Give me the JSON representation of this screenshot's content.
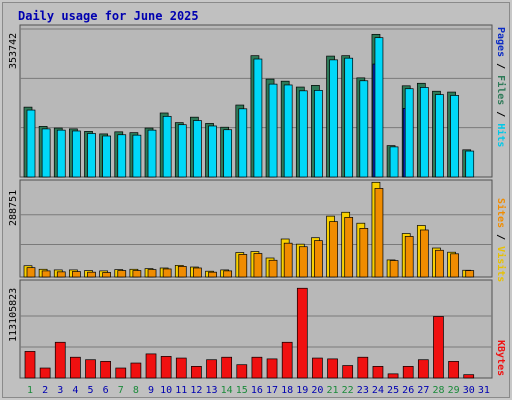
{
  "title": "Daily usage for June 2025",
  "colors": {
    "hits": "#00d8f8",
    "files": "#2e7a58",
    "pages": "#0c2cc4",
    "visits": "#f8d000",
    "sites": "#f08c00",
    "kbytes": "#f01010",
    "weekend_day": "#1a8a3a",
    "weekday": "#0000b0"
  },
  "side_labels": {
    "top": {
      "pages": "Pages",
      "files": "Files",
      "hits": "Hits",
      "sep": " / "
    },
    "mid": {
      "sites": "Sites",
      "visits": "Visits",
      "sep": " / "
    },
    "bot": {
      "kbytes": "KBytes"
    }
  },
  "chart_data": [
    {
      "type": "bar",
      "title": "Daily usage for June 2025",
      "ymax_label": "353742",
      "ylim": [
        0,
        353742
      ],
      "grid": true,
      "legend": "right side, vertical",
      "categories": [
        "1",
        "2",
        "3",
        "4",
        "5",
        "6",
        "7",
        "8",
        "9",
        "10",
        "11",
        "12",
        "13",
        "14",
        "15",
        "16",
        "17",
        "18",
        "19",
        "20",
        "21",
        "22",
        "23",
        "24",
        "25",
        "26",
        "27",
        "28",
        "29",
        "30",
        "31"
      ],
      "weekend_days": [
        1,
        7,
        8,
        14,
        15,
        21,
        22,
        28,
        29
      ],
      "series": [
        {
          "name": "Files",
          "values": [
            167000,
            121000,
            117000,
            115000,
            109000,
            103000,
            108000,
            106000,
            117000,
            153000,
            130000,
            143000,
            128000,
            119000,
            172000,
            290000,
            234000,
            229000,
            215000,
            219000,
            289000,
            290000,
            237000,
            341000,
            75000,
            218000,
            224000,
            205000,
            203000,
            65000,
            0
          ]
        },
        {
          "name": "Hits",
          "values": [
            160000,
            115000,
            112000,
            110000,
            104000,
            98000,
            101000,
            100000,
            112000,
            145000,
            125000,
            135000,
            122000,
            113000,
            163000,
            282000,
            222000,
            220000,
            206000,
            207000,
            280000,
            284000,
            230000,
            333000,
            72000,
            211000,
            214000,
            197000,
            195000,
            62000,
            0
          ]
        },
        {
          "name": "Pages",
          "values": [
            0,
            0,
            0,
            0,
            0,
            0,
            0,
            0,
            0,
            0,
            0,
            0,
            0,
            0,
            0,
            0,
            0,
            0,
            0,
            0,
            0,
            0,
            0,
            270000,
            0,
            164000,
            0,
            0,
            0,
            0,
            0
          ]
        }
      ]
    },
    {
      "type": "bar",
      "ymax_label": "288751",
      "ylim": [
        0,
        288751
      ],
      "grid": true,
      "categories": [
        "1",
        "2",
        "3",
        "4",
        "5",
        "6",
        "7",
        "8",
        "9",
        "10",
        "11",
        "12",
        "13",
        "14",
        "15",
        "16",
        "17",
        "18",
        "19",
        "20",
        "21",
        "22",
        "23",
        "24",
        "25",
        "26",
        "27",
        "28",
        "29",
        "30",
        "31"
      ],
      "series": [
        {
          "name": "Visits",
          "values": [
            35000,
            24000,
            22000,
            22000,
            20000,
            19000,
            23000,
            24000,
            26000,
            28000,
            36000,
            31000,
            18000,
            22000,
            76000,
            79000,
            59000,
            118000,
            102000,
            122000,
            189000,
            201000,
            167000,
            294000,
            53000,
            135000,
            160000,
            90000,
            77000,
            21000,
            0
          ]
        },
        {
          "name": "Sites",
          "values": [
            29000,
            19000,
            16000,
            17000,
            15000,
            14000,
            20000,
            20000,
            23000,
            25000,
            33000,
            28000,
            15000,
            19000,
            70000,
            73000,
            52000,
            105000,
            94000,
            113000,
            172000,
            185000,
            151000,
            275000,
            51000,
            126000,
            146000,
            83000,
            72000,
            20000,
            0
          ]
        }
      ]
    },
    {
      "type": "bar",
      "ymax_label": "113105823",
      "ylim": [
        0,
        113105823
      ],
      "grid": true,
      "categories": [
        "1",
        "2",
        "3",
        "4",
        "5",
        "6",
        "7",
        "8",
        "9",
        "10",
        "11",
        "12",
        "13",
        "14",
        "15",
        "16",
        "17",
        "18",
        "19",
        "20",
        "21",
        "22",
        "23",
        "24",
        "25",
        "26",
        "27",
        "28",
        "29",
        "30",
        "31"
      ],
      "series": [
        {
          "name": "KBytes",
          "values": [
            32000000,
            12000000,
            43000000,
            25000000,
            22000000,
            20000000,
            12000000,
            18000000,
            29000000,
            26000000,
            24000000,
            14000000,
            22000000,
            25000000,
            16000000,
            25000000,
            23000000,
            43000000,
            108000000,
            24000000,
            23000000,
            15000000,
            25000000,
            14000000,
            5000000,
            14000000,
            22000000,
            74000000,
            20000000,
            4000000,
            0
          ]
        }
      ]
    }
  ]
}
